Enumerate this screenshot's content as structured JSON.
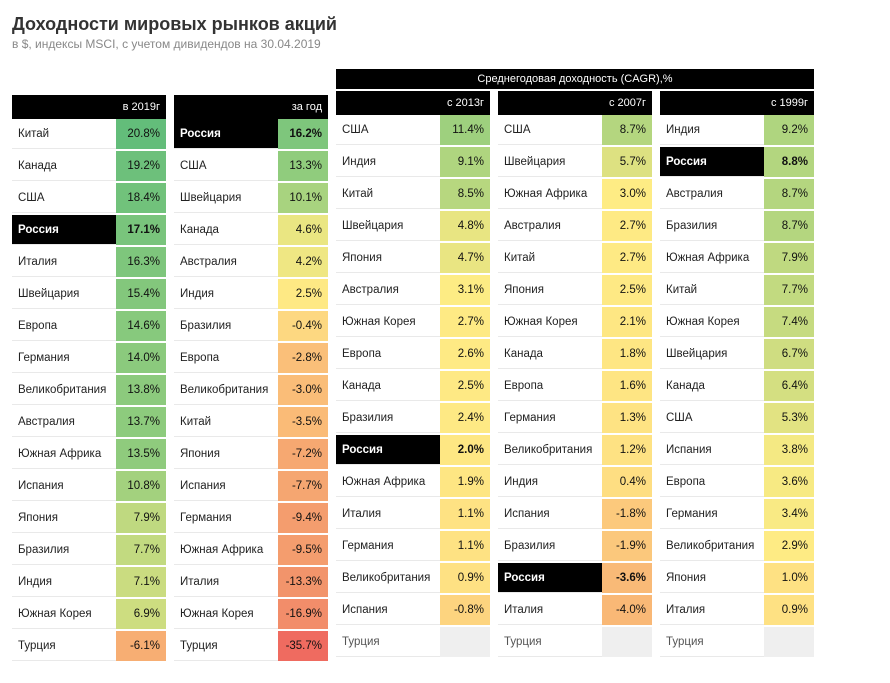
{
  "title": "Доходности мировых рынков акций",
  "subtitle": "в $, индексы MSCI, с учетом дивидендов на 30.04.2019",
  "cagr_header": "Среднегодовая доходность (CAGR),%",
  "highlight_country": "Россия",
  "colors": {
    "header_bg": "#000000",
    "header_fg": "#ffffff",
    "highlight_bg": "#000000",
    "highlight_fg": "#ffffff"
  },
  "color_scale": {
    "stops": [
      {
        "v": -36,
        "c": "#ef6a60"
      },
      {
        "v": -10,
        "c": "#f39a6d"
      },
      {
        "v": -3,
        "c": "#fabd78"
      },
      {
        "v": 0,
        "c": "#fedc82"
      },
      {
        "v": 3,
        "c": "#feec84"
      },
      {
        "v": 6,
        "c": "#d9e081"
      },
      {
        "v": 9,
        "c": "#b0d57f"
      },
      {
        "v": 14,
        "c": "#8bca7d"
      },
      {
        "v": 21,
        "c": "#62bd7a"
      }
    ]
  },
  "tables": [
    {
      "header": "в 2019г",
      "is_cagr": false,
      "rows": [
        {
          "country": "Китай",
          "value": 20.8
        },
        {
          "country": "Канада",
          "value": 19.2
        },
        {
          "country": "США",
          "value": 18.4
        },
        {
          "country": "Россия",
          "value": 17.1
        },
        {
          "country": "Италия",
          "value": 16.3
        },
        {
          "country": "Швейцария",
          "value": 15.4
        },
        {
          "country": "Европа",
          "value": 14.6
        },
        {
          "country": "Германия",
          "value": 14.0
        },
        {
          "country": "Великобритания",
          "value": 13.8
        },
        {
          "country": "Австралия",
          "value": 13.7
        },
        {
          "country": "Южная Африка",
          "value": 13.5
        },
        {
          "country": "Испания",
          "value": 10.8
        },
        {
          "country": "Япония",
          "value": 7.9
        },
        {
          "country": "Бразилия",
          "value": 7.7
        },
        {
          "country": "Индия",
          "value": 7.1
        },
        {
          "country": "Южная Корея",
          "value": 6.9
        },
        {
          "country": "Турция",
          "value": -6.1
        }
      ]
    },
    {
      "header": "за год",
      "is_cagr": false,
      "rows": [
        {
          "country": "Россия",
          "value": 16.2
        },
        {
          "country": "США",
          "value": 13.3
        },
        {
          "country": "Швейцария",
          "value": 10.1
        },
        {
          "country": "Канада",
          "value": 4.6
        },
        {
          "country": "Австралия",
          "value": 4.2
        },
        {
          "country": "Индия",
          "value": 2.5
        },
        {
          "country": "Бразилия",
          "value": -0.4
        },
        {
          "country": "Европа",
          "value": -2.8
        },
        {
          "country": "Великобритания",
          "value": -3.0
        },
        {
          "country": "Китай",
          "value": -3.5
        },
        {
          "country": "Япония",
          "value": -7.2
        },
        {
          "country": "Испания",
          "value": -7.7
        },
        {
          "country": "Германия",
          "value": -9.4
        },
        {
          "country": "Южная Африка",
          "value": -9.5
        },
        {
          "country": "Италия",
          "value": -13.3
        },
        {
          "country": "Южная Корея",
          "value": -16.9
        },
        {
          "country": "Турция",
          "value": -35.7
        }
      ]
    },
    {
      "header": "с 2013г",
      "is_cagr": true,
      "rows": [
        {
          "country": "США",
          "value": 11.4
        },
        {
          "country": "Индия",
          "value": 9.1
        },
        {
          "country": "Китай",
          "value": 8.5
        },
        {
          "country": "Швейцария",
          "value": 4.8
        },
        {
          "country": "Япония",
          "value": 4.7
        },
        {
          "country": "Австралия",
          "value": 3.1
        },
        {
          "country": "Южная Корея",
          "value": 2.7
        },
        {
          "country": "Европа",
          "value": 2.6
        },
        {
          "country": "Канада",
          "value": 2.5
        },
        {
          "country": "Бразилия",
          "value": 2.4
        },
        {
          "country": "Россия",
          "value": 2.0
        },
        {
          "country": "Южная Африка",
          "value": 1.9
        },
        {
          "country": "Италия",
          "value": 1.1
        },
        {
          "country": "Германия",
          "value": 1.1
        },
        {
          "country": "Великобритания",
          "value": 0.9
        },
        {
          "country": "Испания",
          "value": -0.8
        },
        {
          "country": "Турция",
          "value": null
        }
      ]
    },
    {
      "header": "с 2007г",
      "is_cagr": true,
      "rows": [
        {
          "country": "США",
          "value": 8.7
        },
        {
          "country": "Швейцария",
          "value": 5.7
        },
        {
          "country": "Южная Африка",
          "value": 3.0
        },
        {
          "country": "Австралия",
          "value": 2.7
        },
        {
          "country": "Китай",
          "value": 2.7
        },
        {
          "country": "Япония",
          "value": 2.5
        },
        {
          "country": "Южная Корея",
          "value": 2.1
        },
        {
          "country": "Канада",
          "value": 1.8
        },
        {
          "country": "Европа",
          "value": 1.6
        },
        {
          "country": "Германия",
          "value": 1.3
        },
        {
          "country": "Великобритания",
          "value": 1.2
        },
        {
          "country": "Индия",
          "value": 0.4
        },
        {
          "country": "Испания",
          "value": -1.8
        },
        {
          "country": "Бразилия",
          "value": -1.9
        },
        {
          "country": "Россия",
          "value": -3.6
        },
        {
          "country": "Италия",
          "value": -4.0
        },
        {
          "country": "Турция",
          "value": null
        }
      ]
    },
    {
      "header": "с 1999г",
      "is_cagr": true,
      "rows": [
        {
          "country": "Индия",
          "value": 9.2
        },
        {
          "country": "Россия",
          "value": 8.8
        },
        {
          "country": "Австралия",
          "value": 8.7
        },
        {
          "country": "Бразилия",
          "value": 8.7
        },
        {
          "country": "Южная Африка",
          "value": 7.9
        },
        {
          "country": "Китай",
          "value": 7.7
        },
        {
          "country": "Южная Корея",
          "value": 7.4
        },
        {
          "country": "Швейцария",
          "value": 6.7
        },
        {
          "country": "Канада",
          "value": 6.4
        },
        {
          "country": "США",
          "value": 5.3
        },
        {
          "country": "Испания",
          "value": 3.8
        },
        {
          "country": "Европа",
          "value": 3.6
        },
        {
          "country": "Германия",
          "value": 3.4
        },
        {
          "country": "Великобритания",
          "value": 2.9
        },
        {
          "country": "Япония",
          "value": 1.0
        },
        {
          "country": "Италия",
          "value": 0.9
        },
        {
          "country": "Турция",
          "value": null
        }
      ]
    }
  ]
}
